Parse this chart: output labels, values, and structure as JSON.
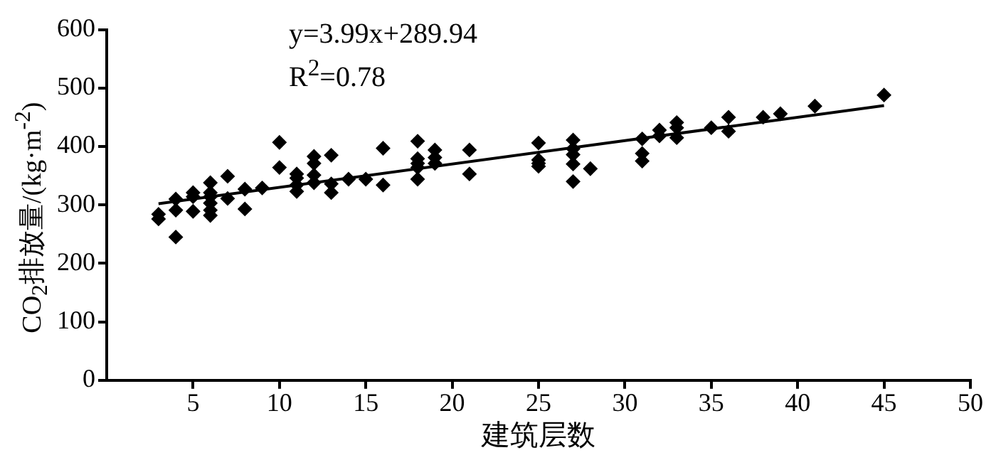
{
  "chart_data": {
    "type": "scatter",
    "xlabel": "建筑层数",
    "ylabel": "CO$_{2}$排放量/(kg·m$^{-2}$)",
    "annotations": [
      "y=3.99x+289.94",
      "R$^{2}$=0.78"
    ],
    "xlim": [
      0,
      50
    ],
    "xticks": [
      5,
      10,
      15,
      20,
      25,
      30,
      35,
      40,
      45,
      50
    ],
    "ylim": [
      0,
      600
    ],
    "yticks": [
      0,
      100,
      200,
      300,
      400,
      500,
      600
    ],
    "grid": false,
    "legend": false,
    "marker": "diamond",
    "series": [
      {
        "type": "scatter",
        "color": "#000000",
        "x": [
          3,
          3,
          4,
          4,
          4,
          5,
          5,
          5,
          6,
          6,
          6,
          6,
          6,
          6,
          7,
          7,
          8,
          8,
          9,
          10,
          10,
          11,
          11,
          11,
          11,
          12,
          12,
          12,
          12,
          13,
          13,
          13,
          14,
          15,
          16,
          16,
          18,
          18,
          18,
          18,
          18,
          19,
          19,
          19,
          21,
          21,
          25,
          25,
          25,
          25,
          27,
          27,
          27,
          27,
          27,
          28,
          31,
          31,
          31,
          32,
          32,
          33,
          33,
          33,
          35,
          36,
          36,
          38,
          39,
          41,
          45
        ],
        "values": [
          284,
          276,
          310,
          291,
          245,
          321,
          314,
          289,
          338,
          321,
          314,
          303,
          291,
          282,
          349,
          311,
          327,
          293,
          329,
          407,
          364,
          353,
          346,
          334,
          323,
          383,
          371,
          351,
          338,
          385,
          336,
          321,
          344,
          344,
          397,
          334,
          409,
          379,
          371,
          364,
          344,
          394,
          381,
          371,
          394,
          353,
          406,
          377,
          371,
          366,
          411,
          396,
          386,
          370,
          340,
          362,
          413,
          388,
          375,
          428,
          418,
          441,
          432,
          415,
          432,
          450,
          426,
          450,
          456,
          469,
          488
        ]
      },
      {
        "type": "line",
        "color": "#000000",
        "marker": "none",
        "x": [
          3,
          45
        ],
        "values": [
          302,
          470
        ]
      }
    ]
  }
}
